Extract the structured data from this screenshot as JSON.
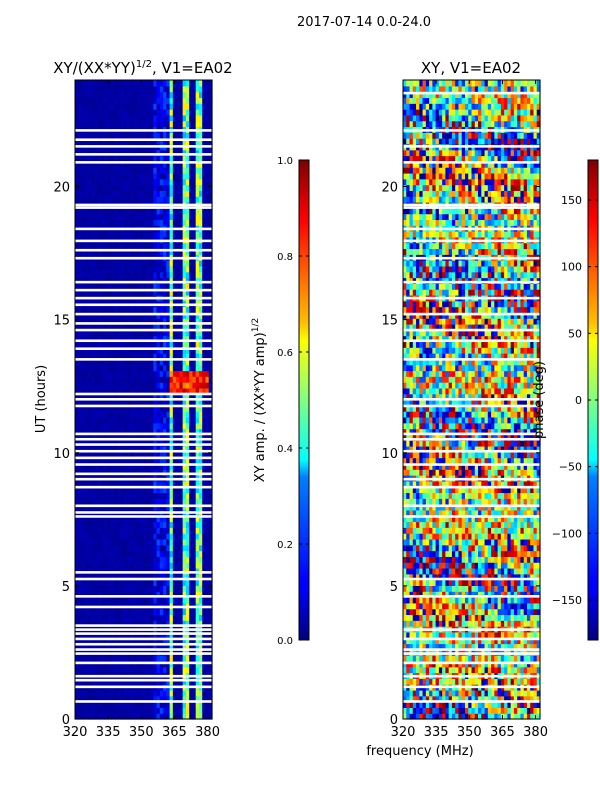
{
  "suptitle": "2017-07-14 0.0-24.0",
  "shared_xlabel": "frequency (MHz)",
  "colors": {
    "cold": "#00007f",
    "cool": "#0000ff",
    "cyan": "#00ffff",
    "yellow": "#ffff00",
    "hot": "#ff0000",
    "deep": "#7f0000"
  },
  "chart_data": [
    {
      "type": "heatmap",
      "title_main": "XY/(XX*YY)",
      "title_sup": "1/2",
      "title_suffix": ", V1=EA02",
      "xlabel": "",
      "ylabel": "UT (hours)",
      "xlim": [
        320,
        382
      ],
      "ylim": [
        0,
        24
      ],
      "xticks": [
        320,
        335,
        350,
        365,
        380
      ],
      "xtick_labels": [
        "320",
        "335",
        "350",
        "365",
        "380"
      ],
      "yticks": [
        0,
        5,
        10,
        15,
        20
      ],
      "ytick_labels": [
        "0",
        "5",
        "10",
        "15",
        "20"
      ],
      "colorbar": {
        "label_main": "XY amp. / (XX*YY amp)",
        "label_sup": "1/2",
        "range": [
          0.0,
          1.0
        ],
        "ticks": [
          0.0,
          0.2,
          0.4,
          0.6,
          0.8,
          1.0
        ],
        "tick_labels": [
          "0.0",
          "0.2",
          "0.4",
          "0.6",
          "0.8",
          "1.0"
        ]
      },
      "gap_hours": [
        0.65,
        1.2,
        1.45,
        1.6,
        2.1,
        2.45,
        2.6,
        2.8,
        3.0,
        3.2,
        3.35,
        3.5,
        4.2,
        4.6,
        5.25,
        5.5,
        7.6,
        7.75,
        8.0,
        8.7,
        9.0,
        9.2,
        9.55,
        9.8,
        10.05,
        10.3,
        10.5,
        10.7,
        11.75,
        12.0,
        12.2,
        13.5,
        13.9,
        14.2,
        14.6,
        14.85,
        15.2,
        15.55,
        15.8,
        16.1,
        16.4,
        17.3,
        17.6,
        17.95,
        18.4,
        19.2,
        19.3,
        20.9,
        21.2,
        21.5,
        21.75,
        22.1
      ],
      "bright_bands_mhz": [
        [
          363,
          365
        ],
        [
          368,
          371
        ],
        [
          375,
          377
        ],
        [
          380,
          381
        ]
      ],
      "peak_window": {
        "ut_start": 12.2,
        "ut_end": 13.0,
        "mhz_start": 363,
        "mhz_end": 380,
        "amp": 0.95
      },
      "background_amp": 0.02
    },
    {
      "type": "heatmap",
      "title_main": "XY",
      "title_suffix": ", V1=EA02",
      "xlabel": "frequency (MHz)",
      "ylabel": "",
      "xlim": [
        320,
        382
      ],
      "ylim": [
        0,
        24
      ],
      "xticks": [
        320,
        335,
        350,
        365,
        380
      ],
      "xtick_labels": [
        "320",
        "335",
        "350",
        "365",
        "380"
      ],
      "yticks": [
        0,
        5,
        10,
        15,
        20
      ],
      "ytick_labels": [
        "0",
        "5",
        "10",
        "15",
        "20"
      ],
      "colorbar": {
        "label": "phase (deg)",
        "range": [
          -180,
          180
        ],
        "ticks": [
          -150,
          -100,
          -50,
          0,
          50,
          100,
          150
        ],
        "tick_labels": [
          "−150",
          "−100",
          "−50",
          "0",
          "50",
          "100",
          "150"
        ]
      },
      "gap_hours": [
        0.65,
        1.2,
        1.6,
        2.1,
        2.45,
        2.6,
        3.0,
        3.35,
        4.6,
        5.25,
        7.6,
        8.0,
        8.7,
        9.0,
        9.55,
        10.05,
        10.5,
        10.7,
        11.75,
        12.0,
        13.5,
        14.2,
        14.6,
        15.2,
        15.8,
        16.4,
        17.3,
        17.95,
        18.4,
        19.2,
        19.3,
        20.9,
        21.5,
        22.1,
        23.5
      ]
    }
  ]
}
